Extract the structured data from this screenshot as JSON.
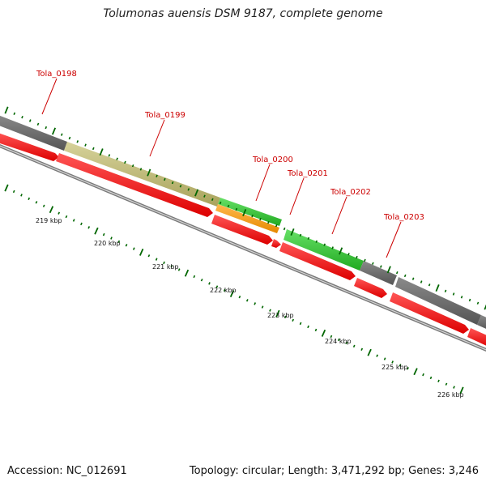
{
  "title": "Tolumonas auensis DSM 9187, complete genome",
  "footer": {
    "accession": "Accession: NC_012691",
    "summary": "Topology: circular; Length: 3,471,292 bp; Genes: 3,246"
  },
  "colors": {
    "gray_feature": "#666666",
    "olive_feature": "#bdb76b",
    "green_feature": "#33cc33",
    "orange_feature": "#ff9900",
    "red_feature": "#ff0000",
    "backbone": "#808080",
    "tick": "#006600",
    "label": "#cc0000"
  },
  "genes": [
    {
      "name": "Tola_0198"
    },
    {
      "name": "Tola_0199"
    },
    {
      "name": "Tola_0200"
    },
    {
      "name": "Tola_0201"
    },
    {
      "name": "Tola_0202"
    },
    {
      "name": "Tola_0203"
    }
  ],
  "kbp_labels": [
    "219 kbp",
    "220 kbp",
    "221 kbp",
    "222 kbp",
    "223 kbp",
    "224 kbp",
    "225 kbp",
    "226 kbp"
  ]
}
